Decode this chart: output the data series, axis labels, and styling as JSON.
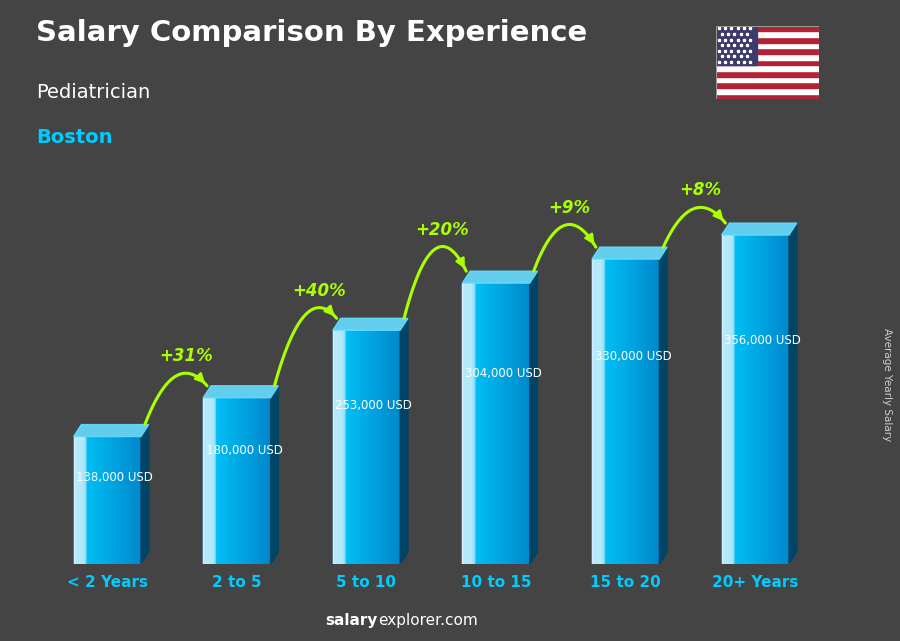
{
  "title": "Salary Comparison By Experience",
  "subtitle1": "Pediatrician",
  "subtitle2": "Boston",
  "categories": [
    "< 2 Years",
    "2 to 5",
    "5 to 10",
    "10 to 15",
    "15 to 20",
    "20+ Years"
  ],
  "values": [
    138000,
    180000,
    253000,
    304000,
    330000,
    356000
  ],
  "labels": [
    "138,000 USD",
    "180,000 USD",
    "253,000 USD",
    "304,000 USD",
    "330,000 USD",
    "356,000 USD"
  ],
  "pct_changes": [
    "+31%",
    "+40%",
    "+20%",
    "+9%",
    "+8%"
  ],
  "bg_color": "#444444",
  "title_color": "#ffffff",
  "subtitle1_color": "#ffffff",
  "subtitle2_color": "#00ccff",
  "label_color": "#ffffff",
  "pct_color": "#aaff00",
  "xlabel_color": "#00ccff",
  "watermark_bold": "salary",
  "watermark_regular": "explorer.com",
  "right_label": "Average Yearly Salary",
  "ylim": [
    0,
    430000
  ],
  "bar_width": 0.52,
  "bar_front_light": "#00ccff",
  "bar_front_mid": "#0099cc",
  "bar_front_dark": "#006699",
  "bar_side_color": "#004466",
  "bar_top_color": "#66ddff"
}
